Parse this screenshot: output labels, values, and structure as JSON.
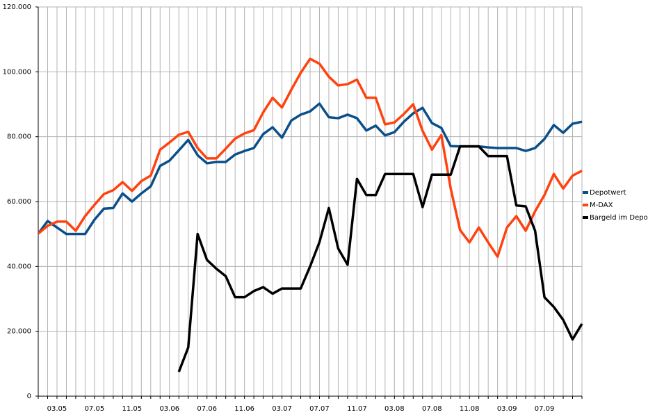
{
  "chart_data": {
    "type": "line",
    "categories": [
      null,
      null,
      "03.05",
      null,
      null,
      null,
      "07.05",
      null,
      null,
      null,
      "11.05",
      null,
      null,
      null,
      "03.06",
      null,
      null,
      null,
      "07.06",
      null,
      null,
      null,
      "11.06",
      null,
      null,
      null,
      "03.07",
      null,
      null,
      null,
      "07.07",
      null,
      null,
      null,
      "11.07",
      null,
      null,
      null,
      "03.08",
      null,
      null,
      null,
      "07.08",
      null,
      null,
      null,
      "11.08",
      null,
      null,
      null,
      "03.09",
      null,
      null,
      null,
      "07.09",
      null,
      null,
      null,
      null
    ],
    "series": [
      {
        "name": "Depotwert",
        "color": "#0a4f8a",
        "values": [
          50100,
          54000,
          52000,
          50000,
          50000,
          50000,
          54400,
          57800,
          58000,
          62500,
          60000,
          62500,
          64700,
          71000,
          72600,
          75800,
          79000,
          74300,
          71800,
          72200,
          72200,
          74500,
          75600,
          76500,
          80800,
          82900,
          79700,
          85000,
          86800,
          87800,
          90200,
          86000,
          85700,
          86800,
          85700,
          81900,
          83400,
          80400,
          81400,
          84600,
          87200,
          88900,
          84200,
          82700,
          77100,
          77000,
          77000,
          77000,
          76700,
          76500,
          76500,
          76500,
          75600,
          76500,
          79300,
          83600,
          81200,
          84000,
          84600
        ]
      },
      {
        "name": "M-DAX",
        "color": "#ff420e",
        "values": [
          50100,
          52500,
          53800,
          53800,
          51000,
          55500,
          59000,
          62300,
          63500,
          66000,
          63300,
          66300,
          68000,
          76000,
          78200,
          80600,
          81500,
          76500,
          73300,
          73300,
          76300,
          79400,
          81000,
          82000,
          87500,
          92000,
          89000,
          94500,
          99700,
          104000,
          102500,
          98500,
          95800,
          96200,
          97600,
          92000,
          92000,
          83800,
          84400,
          87000,
          90000,
          81800,
          76000,
          80500,
          64000,
          51200,
          47400,
          52000,
          47400,
          43000,
          52000,
          55500,
          51000,
          57000,
          62000,
          68500,
          64000,
          68000,
          69500
        ]
      },
      {
        "name": "Bargeld im Depot",
        "color": "#000000",
        "values": [
          null,
          null,
          null,
          null,
          null,
          null,
          null,
          null,
          null,
          null,
          null,
          null,
          null,
          null,
          null,
          7500,
          15000,
          50000,
          42000,
          39300,
          37000,
          30500,
          30500,
          32400,
          33600,
          31600,
          33200,
          33200,
          33200,
          40000,
          47500,
          58000,
          45500,
          40500,
          67000,
          62000,
          62000,
          68500,
          68500,
          68500,
          68500,
          58300,
          68300,
          68300,
          68300,
          77000,
          77000,
          77000,
          74000,
          74000,
          74000,
          58800,
          58500,
          51000,
          30500,
          27500,
          23500,
          17500,
          22300
        ]
      }
    ],
    "ylim": [
      0,
      120000
    ],
    "yticks": [
      0,
      {
        "value": 20000,
        "label": "20.000"
      },
      {
        "value": 40000,
        "label": "40.000"
      },
      {
        "value": 60000,
        "label": "60.000"
      },
      {
        "value": 80000,
        "label": "80.000"
      },
      {
        "value": 100000,
        "label": "100.000"
      },
      {
        "value": 120000,
        "label": "120.000"
      }
    ],
    "grid": true,
    "legend": "right"
  }
}
